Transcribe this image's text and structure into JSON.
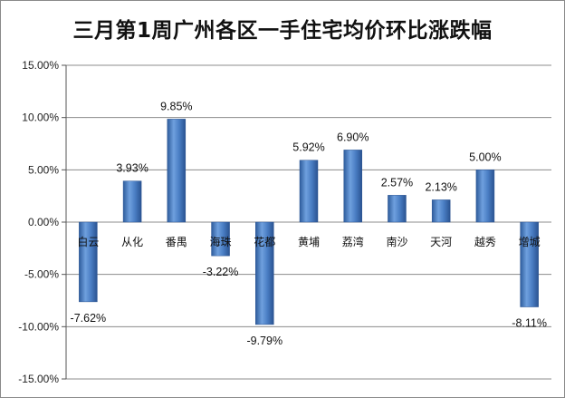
{
  "chart_data": {
    "type": "bar",
    "title": "三月第1周广州各区一手住宅均价环比涨跌幅",
    "xlabel": "",
    "ylabel": "",
    "categories": [
      "白云",
      "从化",
      "番禺",
      "海珠",
      "花都",
      "黄埔",
      "荔湾",
      "南沙",
      "天河",
      "越秀",
      "增城"
    ],
    "values": [
      -7.62,
      3.93,
      9.85,
      -3.22,
      -9.79,
      5.92,
      6.9,
      2.57,
      2.13,
      5.0,
      -8.11
    ],
    "data_labels": [
      "-7.62%",
      "3.93%",
      "9.85%",
      "-3.22%",
      "-9.79%",
      "5.92%",
      "6.90%",
      "2.57%",
      "2.13%",
      "5.00%",
      "-8.11%"
    ],
    "ylim": [
      -15,
      15
    ],
    "yticks": [
      15,
      10,
      5,
      0,
      -5,
      -10,
      -15
    ],
    "ytick_labels": [
      "15.00%",
      "10.00%",
      "5.00%",
      "0.00%",
      "-5.00%",
      "-10.00%",
      "-15.00%"
    ],
    "grid": true,
    "legend": "none",
    "colors": {
      "bar_light": "#6f9fdb",
      "bar_mid": "#4a7ec4",
      "bar_dark": "#2d5a99",
      "gridline": "#8c8c8c"
    }
  }
}
